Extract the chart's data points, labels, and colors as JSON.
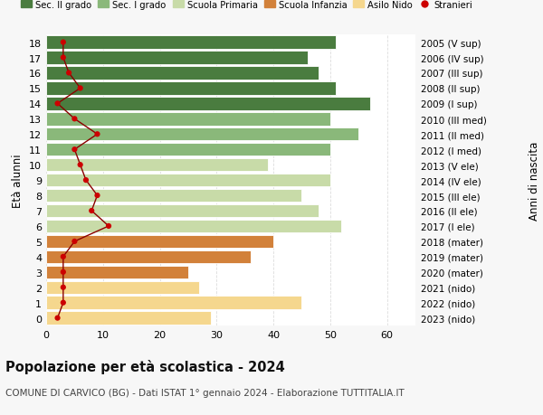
{
  "ages": [
    0,
    1,
    2,
    3,
    4,
    5,
    6,
    7,
    8,
    9,
    10,
    11,
    12,
    13,
    14,
    15,
    16,
    17,
    18
  ],
  "labels_right": [
    "2023 (nido)",
    "2022 (nido)",
    "2021 (nido)",
    "2020 (mater)",
    "2019 (mater)",
    "2018 (mater)",
    "2017 (I ele)",
    "2016 (II ele)",
    "2015 (III ele)",
    "2014 (IV ele)",
    "2013 (V ele)",
    "2012 (I med)",
    "2011 (II med)",
    "2010 (III med)",
    "2009 (I sup)",
    "2008 (II sup)",
    "2007 (III sup)",
    "2006 (IV sup)",
    "2005 (V sup)"
  ],
  "bar_values": [
    29,
    45,
    27,
    25,
    36,
    40,
    52,
    48,
    45,
    50,
    39,
    50,
    55,
    50,
    57,
    51,
    48,
    46,
    51
  ],
  "bar_colors": [
    "#f5d78e",
    "#f5d78e",
    "#f5d78e",
    "#d2813a",
    "#d2813a",
    "#d2813a",
    "#c8dba8",
    "#c8dba8",
    "#c8dba8",
    "#c8dba8",
    "#c8dba8",
    "#8ab87a",
    "#8ab87a",
    "#8ab87a",
    "#4a7c3f",
    "#4a7c3f",
    "#4a7c3f",
    "#4a7c3f",
    "#4a7c3f"
  ],
  "stranieri": [
    2,
    3,
    3,
    3,
    3,
    5,
    11,
    8,
    9,
    7,
    6,
    5,
    9,
    5,
    2,
    6,
    4,
    3,
    3
  ],
  "legend_labels": [
    "Sec. II grado",
    "Sec. I grado",
    "Scuola Primaria",
    "Scuola Infanzia",
    "Asilo Nido",
    "Stranieri"
  ],
  "legend_colors": [
    "#4a7c3f",
    "#8ab87a",
    "#c8dba8",
    "#d2813a",
    "#f5d78e",
    "#990000"
  ],
  "title": "Popolazione per età scolastica - 2024",
  "subtitle": "COMUNE DI CARVICO (BG) - Dati ISTAT 1° gennaio 2024 - Elaborazione TUTTITALIA.IT",
  "ylabel_left": "Età alunni",
  "ylabel_right": "Anni di nascita",
  "xlim": [
    0,
    65
  ],
  "xticks": [
    0,
    10,
    20,
    30,
    40,
    50,
    60
  ],
  "bg_color": "#f7f7f7",
  "plot_bg_color": "#ffffff",
  "grid_color": "#dddddd",
  "stranieri_line_color": "#8b0000",
  "stranieri_dot_color": "#cc0000",
  "bar_height": 0.85
}
